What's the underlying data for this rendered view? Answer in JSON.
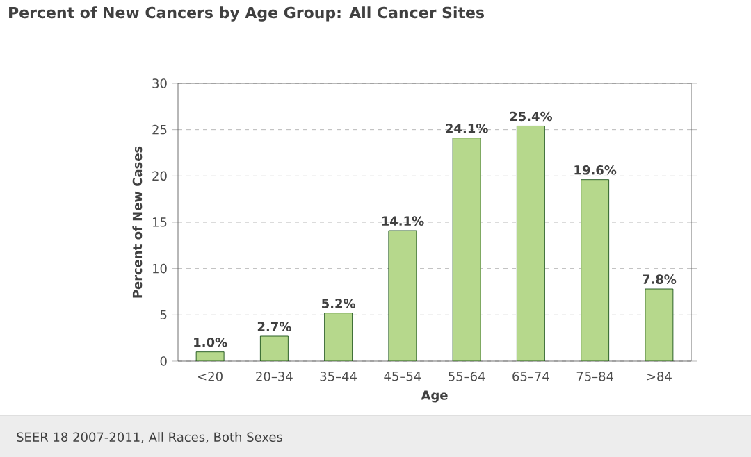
{
  "chart_data": {
    "type": "bar",
    "title": "Percent of New Cancers by Age Group: All Cancer Sites",
    "xlabel": "Age",
    "ylabel": "Percent of New Cases",
    "categories": [
      "<20",
      "20–34",
      "35–44",
      "45–54",
      "55–64",
      "65–74",
      "75–84",
      ">84"
    ],
    "values": [
      1.0,
      2.7,
      5.2,
      14.1,
      24.1,
      25.4,
      19.6,
      7.8
    ],
    "value_labels": [
      "1.0%",
      "2.7%",
      "5.2%",
      "14.1%",
      "24.1%",
      "25.4%",
      "19.6%",
      "7.8%"
    ],
    "color": "#b6d88c",
    "ylim": [
      0,
      30
    ],
    "yticks": [
      0,
      5,
      10,
      15,
      20,
      25,
      30
    ],
    "grid": "y",
    "annotations": [
      "SEER 18 2007-2011, All Races, Both Sexes"
    ]
  }
}
